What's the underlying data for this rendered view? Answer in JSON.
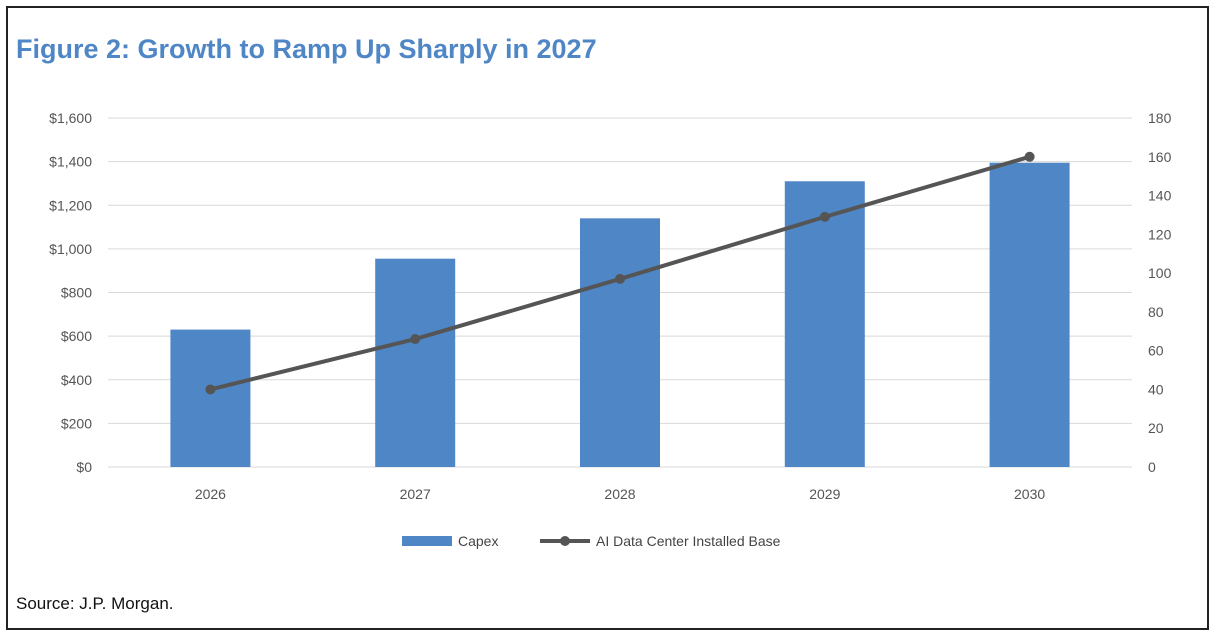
{
  "figure": {
    "title": "Figure 2: Growth to Ramp Up Sharply in 2027",
    "source": "Source: J.P. Morgan."
  },
  "chart_data": {
    "type": "bar",
    "categories": [
      "2026",
      "2027",
      "2028",
      "2029",
      "2030"
    ],
    "series": [
      {
        "name": "Capex",
        "type": "bar",
        "axis": "left",
        "color": "#4f86c6",
        "values": [
          630,
          955,
          1140,
          1310,
          1395
        ]
      },
      {
        "name": "AI Data Center Installed Base",
        "type": "line",
        "axis": "right",
        "color": "#555555",
        "values": [
          40,
          66,
          97,
          129,
          160
        ]
      }
    ],
    "y_left": {
      "min": 0,
      "max": 1600,
      "step": 200,
      "tick_labels": [
        "$0",
        "$200",
        "$400",
        "$600",
        "$800",
        "$1,000",
        "$1,200",
        "$1,400",
        "$1,600"
      ]
    },
    "y_right": {
      "min": 0,
      "max": 180,
      "step": 20,
      "tick_labels": [
        "0",
        "20",
        "40",
        "60",
        "80",
        "100",
        "120",
        "140",
        "160",
        "180"
      ]
    },
    "grid": true,
    "legend": "bottom"
  }
}
